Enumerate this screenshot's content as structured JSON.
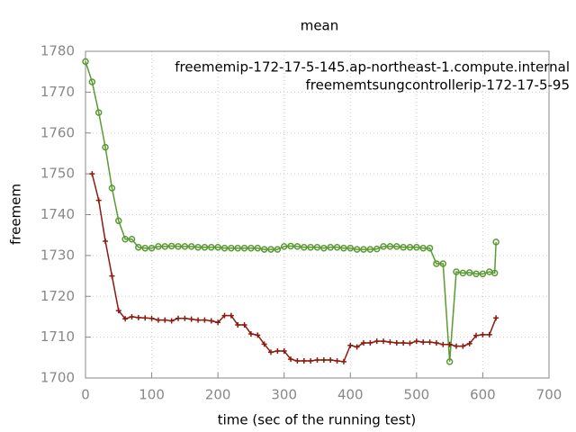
{
  "chart_data": {
    "type": "line",
    "title": "mean",
    "x_label": "time (sec of the running test)",
    "y_label": "freemem",
    "xlim": [
      0,
      700
    ],
    "xticks": [
      0,
      100,
      200,
      300,
      400,
      500,
      600,
      700
    ],
    "ylim": [
      1700,
      1780
    ],
    "yticks": [
      1700,
      1710,
      1720,
      1730,
      1740,
      1750,
      1760,
      1770,
      1780
    ],
    "grid": true,
    "legend": "top-right",
    "series": [
      {
        "name": "freememip-172-17-5-145.ap-northeast-1.compute.internal",
        "color": "#5a9a32",
        "marker": "circle",
        "x": [
          0,
          10,
          20,
          30,
          40,
          50,
          60,
          70,
          80,
          90,
          100,
          110,
          120,
          130,
          140,
          150,
          160,
          170,
          180,
          190,
          200,
          210,
          220,
          230,
          240,
          250,
          260,
          270,
          280,
          290,
          300,
          310,
          320,
          330,
          340,
          350,
          360,
          370,
          380,
          390,
          400,
          410,
          420,
          430,
          440,
          450,
          460,
          470,
          480,
          490,
          500,
          510,
          520,
          530,
          540,
          550,
          560,
          570,
          580,
          590,
          600,
          610,
          618,
          620
        ],
        "values": [
          1777.5,
          1772.5,
          1765,
          1756.5,
          1746.5,
          1738.5,
          1734,
          1734,
          1732,
          1731.8,
          1731.8,
          1732.2,
          1732.2,
          1732.3,
          1732.2,
          1732.2,
          1732.2,
          1732,
          1732,
          1732,
          1732,
          1731.8,
          1731.8,
          1731.8,
          1731.8,
          1731.8,
          1731.8,
          1731.5,
          1731.5,
          1731.5,
          1732.2,
          1732.3,
          1732.2,
          1732,
          1732,
          1732,
          1731.8,
          1732,
          1732,
          1731.8,
          1731.8,
          1731.5,
          1731.5,
          1731.5,
          1731.6,
          1732.2,
          1732.2,
          1732.2,
          1732,
          1732,
          1732,
          1731.8,
          1731.8,
          1728,
          1728,
          1704,
          1726,
          1725.7,
          1725.8,
          1725.5,
          1725.5,
          1726,
          1725.7,
          1733.3
        ]
      },
      {
        "name": "freememtsungcontrollerip-172-17-5-95",
        "color": "#8b1a0e",
        "marker": "plus",
        "x": [
          10,
          20,
          30,
          40,
          50,
          60,
          70,
          80,
          90,
          100,
          110,
          120,
          130,
          140,
          150,
          160,
          170,
          180,
          190,
          200,
          210,
          220,
          230,
          240,
          250,
          260,
          270,
          280,
          290,
          300,
          310,
          320,
          330,
          340,
          350,
          360,
          370,
          380,
          390,
          400,
          410,
          420,
          430,
          440,
          450,
          460,
          470,
          480,
          490,
          500,
          510,
          520,
          530,
          540,
          550,
          560,
          570,
          580,
          590,
          600,
          610,
          620
        ],
        "values": [
          1750,
          1743.5,
          1733.5,
          1725,
          1716.5,
          1714.5,
          1715,
          1714.8,
          1714.7,
          1714.6,
          1714.2,
          1714.2,
          1714,
          1714.6,
          1714.6,
          1714.4,
          1714.2,
          1714.2,
          1714,
          1713.6,
          1715.3,
          1715.3,
          1713,
          1713,
          1710.8,
          1710.5,
          1708.3,
          1706.3,
          1706.6,
          1706.6,
          1704.6,
          1704.2,
          1704.2,
          1704.2,
          1704.4,
          1704.4,
          1704.4,
          1704.2,
          1704,
          1708,
          1707.6,
          1708.6,
          1708.6,
          1709,
          1709,
          1708.8,
          1708.6,
          1708.6,
          1708.5,
          1709,
          1708.8,
          1708.8,
          1708.6,
          1708.2,
          1708.2,
          1707.8,
          1707.8,
          1708.4,
          1710.4,
          1710.6,
          1710.6,
          1714.7
        ]
      }
    ]
  }
}
